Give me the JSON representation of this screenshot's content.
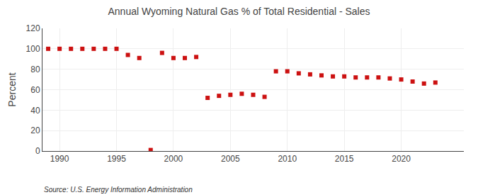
{
  "chart_data": {
    "type": "scatter",
    "title": "Annual Wyoming Natural Gas % of Total Residential - Sales",
    "ylabel": "Percent",
    "annotations": [
      "Source: U.S. Energy Information Administration"
    ],
    "color": "#cc1111",
    "marker": "square",
    "xlim": [
      1988.5,
      2025.5
    ],
    "ylim": [
      0,
      120
    ],
    "xticks": [
      1990,
      1995,
      2000,
      2005,
      2010,
      2015,
      2020
    ],
    "yticks": [
      0,
      20,
      40,
      60,
      80,
      100,
      120
    ],
    "grid": true,
    "x": [
      1989,
      1990,
      1991,
      1992,
      1993,
      1994,
      1995,
      1996,
      1997,
      1998,
      1999,
      2000,
      2001,
      2002,
      2003,
      2004,
      2005,
      2006,
      2007,
      2008,
      2009,
      2010,
      2011,
      2012,
      2013,
      2014,
      2015,
      2016,
      2017,
      2018,
      2019,
      2020,
      2021,
      2022,
      2023
    ],
    "values": [
      100,
      100,
      100,
      100,
      100,
      100,
      100,
      94,
      91,
      1,
      96,
      91,
      91,
      92,
      52,
      54,
      55,
      56,
      55,
      53,
      78,
      78,
      76,
      75,
      74,
      73,
      73,
      72,
      72,
      72,
      71,
      70,
      68,
      66,
      67
    ]
  }
}
